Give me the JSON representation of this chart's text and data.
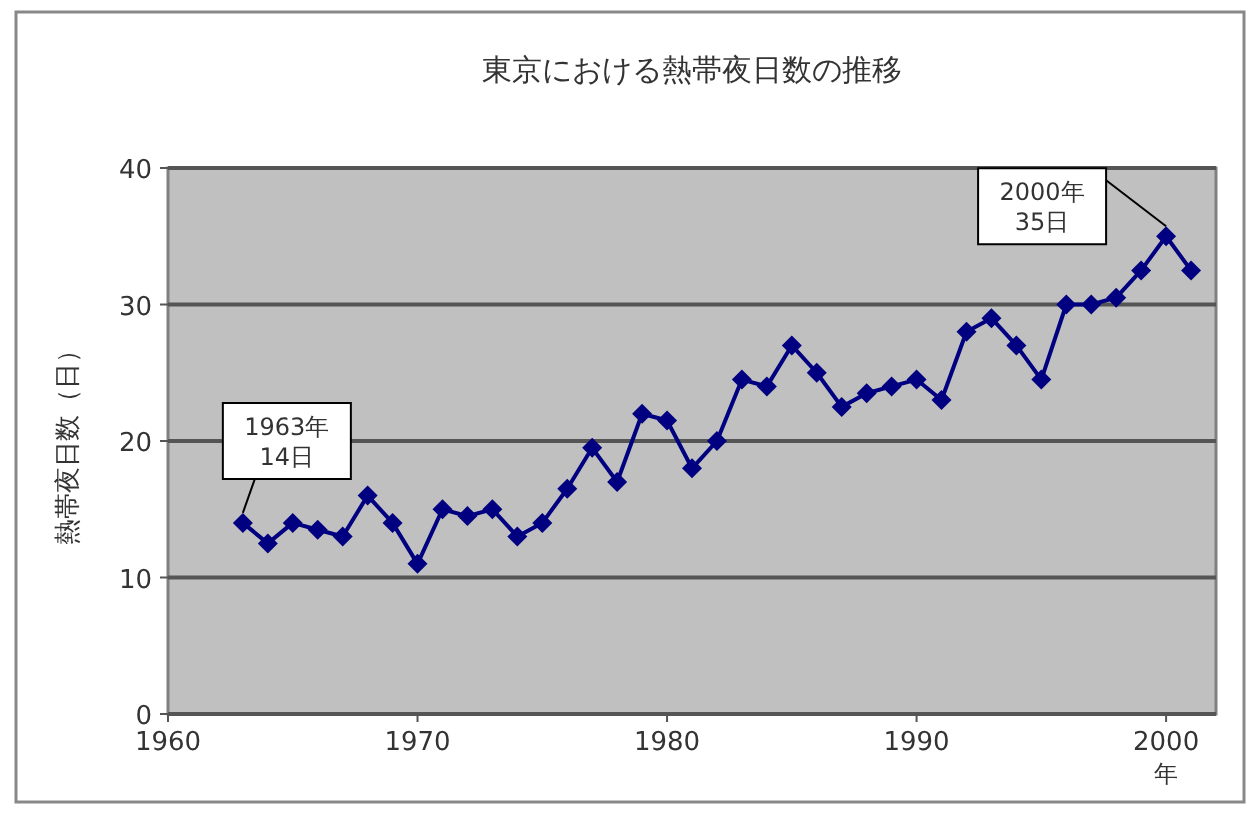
{
  "chart_data": {
    "type": "line",
    "title": "東京における熱帯夜日数の推移",
    "ylabel": "熱帯夜日数（日）",
    "xlabel": "年",
    "x": [
      1963,
      1964,
      1965,
      1966,
      1967,
      1968,
      1969,
      1970,
      1971,
      1972,
      1973,
      1974,
      1975,
      1976,
      1977,
      1978,
      1979,
      1980,
      1981,
      1982,
      1983,
      1984,
      1985,
      1986,
      1987,
      1988,
      1989,
      1990,
      1991,
      1992,
      1993,
      1994,
      1995,
      1996,
      1997,
      1998,
      1999,
      2000,
      2001
    ],
    "series": [
      {
        "color": "#000080",
        "values": [
          14,
          12.5,
          14,
          13.5,
          13,
          16,
          14,
          11,
          15,
          14.5,
          15,
          13,
          14,
          16.5,
          19.5,
          17,
          22,
          21.5,
          18,
          20,
          24.5,
          24,
          27,
          25,
          22.5,
          23.5,
          24,
          24.5,
          23,
          28,
          29,
          27,
          24.5,
          30,
          30,
          30.5,
          32.5,
          35,
          32.5
        ]
      }
    ],
    "xlim": [
      1960,
      2002
    ],
    "xticks": [
      1960,
      1970,
      1980,
      1990,
      2000
    ],
    "ylim": [
      0,
      40
    ],
    "yticks": [
      0,
      10,
      20,
      30,
      40
    ],
    "grid": "y",
    "marker": "diamond",
    "line_style": "solid",
    "annotations": [
      {
        "text": "1963年\n14日",
        "x": 1963,
        "y": 14
      },
      {
        "text": "2000年\n35日",
        "x": 2000,
        "y": 35
      }
    ]
  }
}
